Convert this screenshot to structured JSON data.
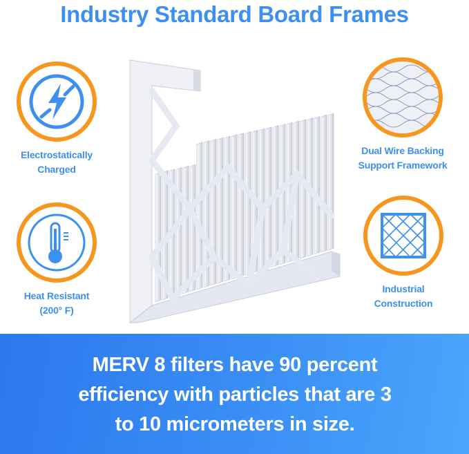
{
  "title": "Industry Standard Board Frames",
  "features": [
    {
      "label_lines": [
        "Electrostatically",
        "Charged"
      ],
      "icon": "lightning-bolt-icon"
    },
    {
      "label_lines": [
        "Heat Resistant",
        "(200° F)"
      ],
      "icon": "thermometer-icon"
    },
    {
      "label_lines": [
        "Dual Wire Backing",
        "Support Framework"
      ],
      "icon": "wire-mesh-photo"
    },
    {
      "label_lines": [
        "Industrial",
        "Construction"
      ],
      "icon": "grid-frame-icon"
    }
  ],
  "banner": {
    "lines": [
      "MERV 8 filters have 90 percent",
      "efficiency with particles that are 3",
      "to 10 micrometers in size."
    ]
  },
  "colors": {
    "accent_blue": "#3d8ff0",
    "ring_orange": "#f7961f",
    "banner_blue": "#2c78ef"
  }
}
